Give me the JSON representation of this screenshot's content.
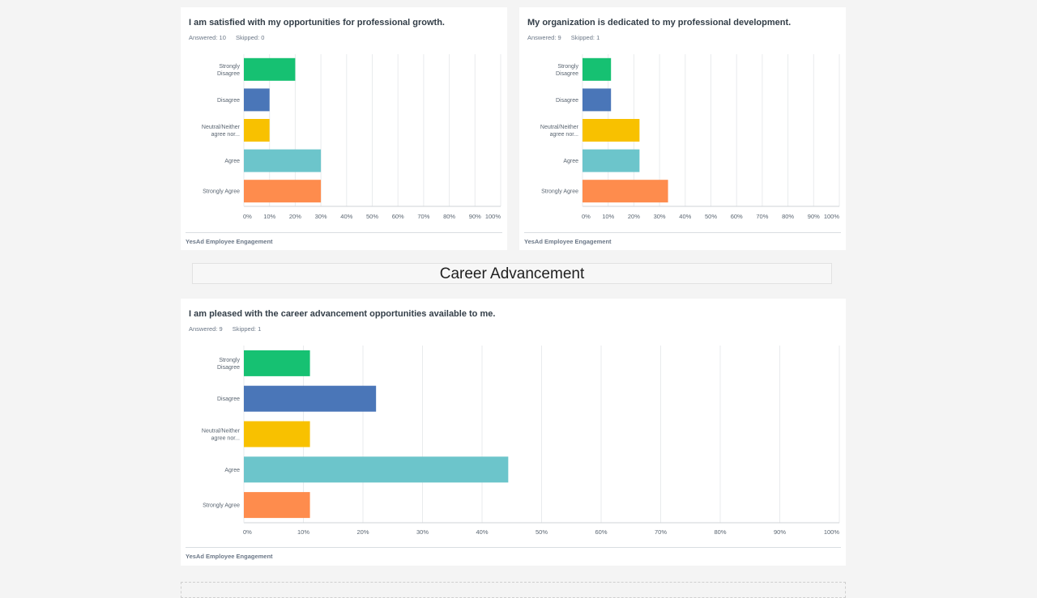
{
  "section": {
    "title": "Career Advancement"
  },
  "colors": {
    "strongly_disagree": "#16c172",
    "disagree": "#4a76b8",
    "neutral": "#f8c100",
    "agree": "#6cc5cb",
    "strongly_agree": "#fe8c4d",
    "grid": "#e9ebed",
    "axis": "#cfd3d7",
    "label": "#5a6571"
  },
  "cards": [
    {
      "title": "I am satisfied with my opportunities for professional growth.",
      "answered": "Answered: 10",
      "skipped": "Skipped: 0",
      "footer": "YesAd Employee Engagement"
    },
    {
      "title": "My organization is dedicated to my professional development.",
      "answered": "Answered: 9",
      "skipped": "Skipped: 1",
      "footer": "YesAd Employee Engagement"
    },
    {
      "title": "I am pleased with the career advancement opportunities available to me.",
      "answered": "Answered: 9",
      "skipped": "Skipped: 1",
      "footer": "YesAd Employee Engagement"
    }
  ],
  "chart_data": [
    {
      "type": "bar",
      "orientation": "horizontal",
      "categories": [
        [
          "Strongly",
          "Disagree"
        ],
        [
          "Disagree"
        ],
        [
          "Neutral/Neither",
          "agree nor..."
        ],
        [
          "Agree"
        ],
        [
          "Strongly Agree"
        ]
      ],
      "values": [
        20,
        10,
        10,
        30,
        30
      ],
      "ticks": [
        "0%",
        "10%",
        "20%",
        "30%",
        "40%",
        "50%",
        "60%",
        "70%",
        "80%",
        "90%",
        "100%"
      ],
      "xlim": [
        0,
        100
      ],
      "grid": true
    },
    {
      "type": "bar",
      "orientation": "horizontal",
      "categories": [
        [
          "Strongly",
          "Disagree"
        ],
        [
          "Disagree"
        ],
        [
          "Neutral/Neither",
          "agree nor..."
        ],
        [
          "Agree"
        ],
        [
          "Strongly Agree"
        ]
      ],
      "values": [
        11.1,
        11.1,
        22.2,
        22.2,
        33.3
      ],
      "ticks": [
        "0%",
        "10%",
        "20%",
        "30%",
        "40%",
        "50%",
        "60%",
        "70%",
        "80%",
        "90%",
        "100%"
      ],
      "xlim": [
        0,
        100
      ],
      "grid": true
    },
    {
      "type": "bar",
      "orientation": "horizontal",
      "categories": [
        [
          "Strongly",
          "Disagree"
        ],
        [
          "Disagree"
        ],
        [
          "Neutral/Neither",
          "agree nor..."
        ],
        [
          "Agree"
        ],
        [
          "Strongly Agree"
        ]
      ],
      "values": [
        11.1,
        22.2,
        11.1,
        44.4,
        11.1
      ],
      "ticks": [
        "0%",
        "10%",
        "20%",
        "30%",
        "40%",
        "50%",
        "60%",
        "70%",
        "80%",
        "90%",
        "100%"
      ],
      "xlim": [
        0,
        100
      ],
      "grid": true
    }
  ]
}
